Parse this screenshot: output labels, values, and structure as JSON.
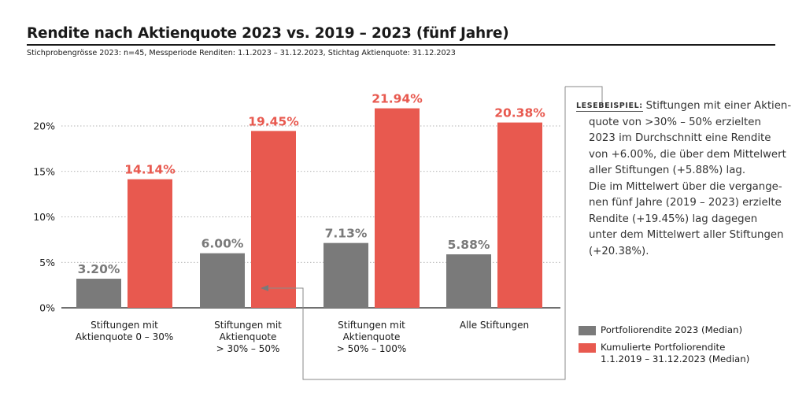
{
  "title": "Rendite nach Aktienquote 2023 vs. 2019 – 2023 (fünf Jahre)",
  "subtitle": "Stichprobengrösse 2023: n=45, Messperiode Renditen: 1.1.2023 – 31.12.2023, Stichtag Aktienquote: 31.12.2023",
  "colors": {
    "grey": "#7a7a7a",
    "red": "#e8594f",
    "red_text": "#e8594f",
    "grey_text": "#7a7a7a"
  },
  "chart_data": {
    "type": "bar",
    "categories": [
      [
        "Stiftungen mit",
        "Aktienquote 0 – 30%"
      ],
      [
        "Stiftungen mit",
        "Aktienquote",
        "> 30% – 50%"
      ],
      [
        "Stiftungen mit",
        "Aktienquote",
        "> 50% – 100%"
      ],
      [
        "Alle Stiftungen"
      ]
    ],
    "series": [
      {
        "name": "Portfoliorendite 2023 (Median)",
        "values": [
          3.2,
          6.0,
          7.13,
          5.88
        ],
        "labels": [
          "3.20%",
          "6.00%",
          "7.13%",
          "5.88%"
        ]
      },
      {
        "name": "Kumulierte Portfoliorendite 1.1.2019 – 31.12.2023 (Median)",
        "values": [
          14.14,
          19.45,
          21.94,
          20.38
        ],
        "labels": [
          "14.14%",
          "19.45%",
          "21.94%",
          "20.38%"
        ]
      }
    ],
    "yticks": [
      0,
      5,
      10,
      15,
      20
    ],
    "ytick_labels": [
      "0%",
      "5%",
      "10%",
      "15%",
      "20%"
    ],
    "ylim": [
      0,
      25
    ],
    "grid": true
  },
  "note": {
    "tag": "LESEBEISPIEL:",
    "lines": [
      "Stiftungen mit einer Aktien-",
      "quote von >30% – 50% erzielten",
      "2023 im Durchschnitt eine Rendite",
      "von +6.00%, die über dem Mittelwert",
      "aller Stiftungen (+5.88%) lag.",
      "Die im Mittelwert über die vergange-",
      "nen fünf Jahre (2019 – 2023) erzielte",
      "Rendite (+19.45%) lag dagegen",
      "unter dem Mittelwert aller Stiftungen",
      "(+20.38%)."
    ]
  },
  "legend": [
    {
      "lines": [
        "Portfoliorendite 2023 (Median)"
      ]
    },
    {
      "lines": [
        "Kumulierte Portfoliorendite",
        "1.1.2019 – 31.12.2023 (Median)"
      ]
    }
  ]
}
